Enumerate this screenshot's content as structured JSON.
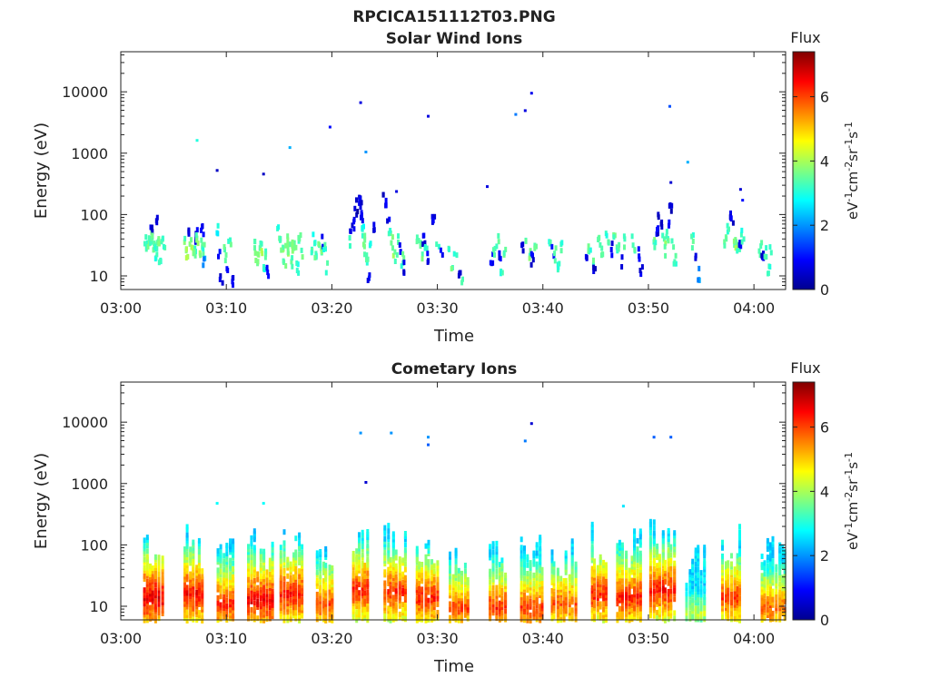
{
  "figure_title": "RPCICA151112T03.PNG",
  "colorbar": {
    "title": "Flux",
    "unit_base": "eV",
    "unit_rest": "cm",
    "unit_sr": "sr",
    "unit_s": "s",
    "unit_exp": "-1",
    "unit_exp2": "-2",
    "range": [
      0,
      7.4
    ],
    "ticks": [
      "0",
      "2",
      "4",
      "6"
    ],
    "tick_values": [
      0,
      2,
      4,
      6
    ],
    "colormap": "jet"
  },
  "chart_data": [
    {
      "type": "heatmap",
      "title": "Solar Wind Ions",
      "xlabel": "Time",
      "ylabel": "Energy (eV)",
      "x_range_minutes": [
        0,
        63
      ],
      "y_scale": "log",
      "ylim": [
        6,
        45000
      ],
      "x_ticks": [
        "03:00",
        "03:10",
        "03:20",
        "03:30",
        "03:40",
        "03:50",
        "04:00"
      ],
      "x_tick_minutes": [
        0,
        10,
        20,
        30,
        40,
        50,
        60
      ],
      "y_ticks": [
        "10",
        "100",
        "1000",
        "10000"
      ],
      "y_tick_values": [
        10,
        100,
        1000,
        10000
      ],
      "cells": [
        [
          2.2,
          40,
          3.5
        ],
        [
          2.4,
          35,
          3.2
        ],
        [
          2.5,
          40,
          3.6
        ],
        [
          2.6,
          30,
          3.5
        ],
        [
          2.7,
          50,
          3.4
        ],
        [
          2.8,
          70,
          0.8
        ],
        [
          2.9,
          45,
          3.6
        ],
        [
          3.0,
          35,
          3.8
        ],
        [
          3.1,
          28,
          3.4
        ],
        [
          3.2,
          25,
          3.0
        ],
        [
          3.3,
          100,
          0.6
        ],
        [
          3.4,
          40,
          3.5
        ],
        [
          3.5,
          30,
          3.8
        ],
        [
          3.6,
          20,
          3.2
        ],
        [
          3.8,
          40,
          3.3
        ],
        [
          4.0,
          30,
          3.4
        ],
        [
          6.0,
          35,
          3.5
        ],
        [
          6.2,
          28,
          3.8
        ],
        [
          6.4,
          60,
          0.8
        ],
        [
          6.5,
          40,
          3.6
        ],
        [
          6.7,
          30,
          3.9
        ],
        [
          6.9,
          25,
          3.4
        ],
        [
          7.0,
          50,
          0.7
        ],
        [
          7.1,
          40,
          3.6
        ],
        [
          7.3,
          30,
          3.8
        ],
        [
          7.5,
          40,
          3.4
        ],
        [
          7.6,
          60,
          0.7
        ],
        [
          7.7,
          28,
          3.3
        ],
        [
          7.8,
          20,
          2.0
        ],
        [
          9.0,
          60,
          2.8
        ],
        [
          9.2,
          25,
          0.9
        ],
        [
          9.4,
          10,
          0.7
        ],
        [
          9.6,
          30,
          3.4
        ],
        [
          9.8,
          20,
          3.6
        ],
        [
          10.0,
          15,
          0.8
        ],
        [
          10.2,
          35,
          3.3
        ],
        [
          10.4,
          10,
          0.8
        ],
        [
          12.5,
          35,
          3.4
        ],
        [
          12.7,
          25,
          3.7
        ],
        [
          12.9,
          20,
          3.5
        ],
        [
          13.1,
          40,
          3.3
        ],
        [
          13.3,
          30,
          3.8
        ],
        [
          13.5,
          15,
          3.2
        ],
        [
          13.7,
          28,
          3.4
        ],
        [
          13.8,
          12,
          0.7
        ],
        [
          14.8,
          60,
          3.0
        ],
        [
          15.0,
          40,
          3.4
        ],
        [
          15.2,
          30,
          3.6
        ],
        [
          15.4,
          20,
          3.4
        ],
        [
          15.6,
          40,
          3.6
        ],
        [
          15.8,
          30,
          3.7
        ],
        [
          16.0,
          20,
          3.3
        ],
        [
          16.2,
          35,
          3.5
        ],
        [
          16.4,
          25,
          3.6
        ],
        [
          16.6,
          15,
          3.1
        ],
        [
          16.8,
          40,
          3.3
        ],
        [
          17.0,
          25,
          3.4
        ],
        [
          18.0,
          30,
          3.3
        ],
        [
          18.2,
          45,
          2.8
        ],
        [
          18.4,
          20,
          3.4
        ],
        [
          18.6,
          35,
          3.5
        ],
        [
          18.8,
          25,
          3.6
        ],
        [
          19.0,
          40,
          0.8
        ],
        [
          19.2,
          30,
          3.2
        ],
        [
          19.4,
          15,
          3.3
        ],
        [
          21.5,
          40,
          3.3
        ],
        [
          21.7,
          60,
          0.6
        ],
        [
          21.9,
          80,
          0.7
        ],
        [
          22.1,
          120,
          0.6
        ],
        [
          22.3,
          150,
          0.5
        ],
        [
          22.5,
          170,
          0.6
        ],
        [
          22.6,
          200,
          0.7
        ],
        [
          22.7,
          100,
          0.8
        ],
        [
          22.8,
          70,
          3.0
        ],
        [
          22.9,
          50,
          3.4
        ],
        [
          23.0,
          30,
          3.6
        ],
        [
          23.2,
          20,
          3.3
        ],
        [
          23.4,
          12,
          0.8
        ],
        [
          23.6,
          40,
          3.2
        ],
        [
          23.8,
          60,
          0.7
        ],
        [
          24.8,
          200,
          0.6
        ],
        [
          25.0,
          150,
          0.7
        ],
        [
          25.2,
          100,
          0.8
        ],
        [
          25.4,
          60,
          3.2
        ],
        [
          25.6,
          40,
          3.5
        ],
        [
          25.8,
          30,
          3.7
        ],
        [
          26.0,
          20,
          3.4
        ],
        [
          26.2,
          40,
          3.5
        ],
        [
          26.4,
          30,
          0.7
        ],
        [
          26.6,
          20,
          3.3
        ],
        [
          26.8,
          15,
          0.8
        ],
        [
          28.0,
          40,
          3.4
        ],
        [
          28.2,
          30,
          3.5
        ],
        [
          28.4,
          20,
          3.6
        ],
        [
          28.6,
          40,
          0.8
        ],
        [
          28.8,
          30,
          3.3
        ],
        [
          29.0,
          20,
          0.8
        ],
        [
          29.5,
          80,
          0.7
        ],
        [
          29.9,
          40,
          3.2
        ],
        [
          30.3,
          30,
          0.8
        ],
        [
          31.0,
          25,
          3.3
        ],
        [
          31.3,
          15,
          3.4
        ],
        [
          31.6,
          30,
          3.2
        ],
        [
          32.0,
          10,
          0.7
        ],
        [
          32.3,
          8,
          3.4
        ],
        [
          35.0,
          20,
          0.8
        ],
        [
          35.3,
          30,
          3.3
        ],
        [
          35.6,
          40,
          3.4
        ],
        [
          35.8,
          25,
          0.7
        ],
        [
          36.0,
          15,
          3.2
        ],
        [
          36.3,
          30,
          3.3
        ],
        [
          38.0,
          30,
          0.8
        ],
        [
          38.3,
          40,
          3.4
        ],
        [
          38.6,
          25,
          3.5
        ],
        [
          38.9,
          20,
          0.7
        ],
        [
          39.2,
          35,
          3.3
        ],
        [
          40.5,
          40,
          3.2
        ],
        [
          40.8,
          30,
          0.8
        ],
        [
          41.0,
          25,
          3.4
        ],
        [
          41.3,
          15,
          3.3
        ],
        [
          41.7,
          30,
          3.2
        ],
        [
          44.0,
          25,
          0.8
        ],
        [
          44.3,
          30,
          3.3
        ],
        [
          44.6,
          20,
          3.4
        ],
        [
          44.8,
          12,
          0.7
        ],
        [
          45.2,
          40,
          3.4
        ],
        [
          45.5,
          30,
          3.5
        ],
        [
          45.8,
          50,
          3.2
        ],
        [
          46.1,
          40,
          3.4
        ],
        [
          46.4,
          30,
          0.8
        ],
        [
          46.7,
          40,
          3.5
        ],
        [
          47.0,
          30,
          3.3
        ],
        [
          47.3,
          20,
          0.7
        ],
        [
          47.6,
          40,
          3.2
        ],
        [
          48.3,
          40,
          3.3
        ],
        [
          48.6,
          30,
          3.5
        ],
        [
          48.9,
          25,
          0.8
        ],
        [
          49.2,
          15,
          0.7
        ],
        [
          50.5,
          40,
          3.4
        ],
        [
          50.7,
          60,
          0.8
        ],
        [
          50.9,
          100,
          0.7
        ],
        [
          51.1,
          70,
          0.6
        ],
        [
          51.3,
          40,
          3.5
        ],
        [
          51.5,
          30,
          3.6
        ],
        [
          51.7,
          50,
          3.3
        ],
        [
          51.9,
          80,
          0.8
        ],
        [
          52.0,
          130,
          0.6
        ],
        [
          52.2,
          40,
          3.4
        ],
        [
          52.4,
          20,
          3.2
        ],
        [
          54.0,
          40,
          3.3
        ],
        [
          54.3,
          25,
          0.8
        ],
        [
          54.6,
          12,
          2.0
        ],
        [
          57.2,
          40,
          3.4
        ],
        [
          57.4,
          60,
          3.2
        ],
        [
          57.6,
          100,
          0.6
        ],
        [
          57.8,
          80,
          0.7
        ],
        [
          58.0,
          45,
          3.6
        ],
        [
          58.2,
          35,
          3.8
        ],
        [
          58.4,
          25,
          3.4
        ],
        [
          58.6,
          40,
          0.8
        ],
        [
          58.8,
          50,
          3.2
        ],
        [
          60.5,
          30,
          3.4
        ],
        [
          60.7,
          20,
          0.8
        ],
        [
          61.0,
          25,
          3.2
        ],
        [
          61.3,
          15,
          3.3
        ],
        [
          61.5,
          30,
          3.1
        ]
      ],
      "points": [
        [
          7.1,
          1700,
          3.0
        ],
        [
          9.0,
          550,
          0.5
        ],
        [
          13.4,
          480,
          0.5
        ],
        [
          15.9,
          1300,
          2.2
        ],
        [
          19.7,
          2800,
          1.0
        ],
        [
          22.6,
          7000,
          0.7
        ],
        [
          23.1,
          1100,
          2.0
        ],
        [
          26.0,
          250,
          0.7
        ],
        [
          29.0,
          4200,
          0.7
        ],
        [
          34.6,
          300,
          0.7
        ],
        [
          37.3,
          4500,
          1.8
        ],
        [
          38.2,
          5200,
          0.7
        ],
        [
          38.8,
          10000,
          0.8
        ],
        [
          51.9,
          6100,
          1.5
        ],
        [
          52.0,
          350,
          0.6
        ],
        [
          53.6,
          750,
          2.2
        ],
        [
          58.6,
          270,
          0.6
        ],
        [
          58.8,
          180,
          1.0
        ]
      ]
    },
    {
      "type": "heatmap",
      "title": "Cometary Ions",
      "xlabel": "Time",
      "ylabel": "Energy (eV)",
      "x_range_minutes": [
        0,
        63
      ],
      "y_scale": "log",
      "ylim": [
        6,
        45000
      ],
      "x_ticks": [
        "03:00",
        "03:10",
        "03:20",
        "03:30",
        "03:40",
        "03:50",
        "04:00"
      ],
      "x_tick_minutes": [
        0,
        10,
        20,
        30,
        40,
        50,
        60
      ],
      "y_ticks": [
        "10",
        "100",
        "1000",
        "10000"
      ],
      "y_tick_values": [
        10,
        100,
        1000,
        10000
      ],
      "bursts": [
        [
          3.0,
          9,
          6.7
        ],
        [
          6.8,
          10,
          6.5
        ],
        [
          10.0,
          7,
          6.2
        ],
        [
          12.9,
          8,
          6.6
        ],
        [
          16.0,
          10,
          6.4
        ],
        [
          19.4,
          7,
          6.0
        ],
        [
          22.8,
          12,
          6.3
        ],
        [
          25.8,
          11,
          6.2
        ],
        [
          28.8,
          9,
          6.3
        ],
        [
          32.0,
          6,
          6.0
        ],
        [
          35.8,
          6,
          6.2
        ],
        [
          38.8,
          6,
          6.1
        ],
        [
          41.6,
          7,
          5.9
        ],
        [
          45.4,
          10,
          6.3
        ],
        [
          47.8,
          9,
          6.3
        ],
        [
          51.0,
          12,
          6.4
        ],
        [
          54.4,
          5,
          4.2
        ],
        [
          57.8,
          9,
          6.1
        ],
        [
          61.5,
          6,
          5.8
        ]
      ],
      "points": [
        [
          22.6,
          7000,
          2.0
        ],
        [
          23.1,
          1100,
          0.6
        ],
        [
          25.5,
          7000,
          2.0
        ],
        [
          29.0,
          6000,
          2.0
        ],
        [
          29.0,
          4500,
          1.6
        ],
        [
          38.2,
          5200,
          1.8
        ],
        [
          38.8,
          10000,
          0.6
        ],
        [
          50.4,
          6000,
          1.6
        ],
        [
          52.0,
          6000,
          1.6
        ],
        [
          9.0,
          500,
          2.8
        ],
        [
          13.4,
          500,
          2.8
        ],
        [
          47.5,
          450,
          2.6
        ]
      ]
    }
  ]
}
